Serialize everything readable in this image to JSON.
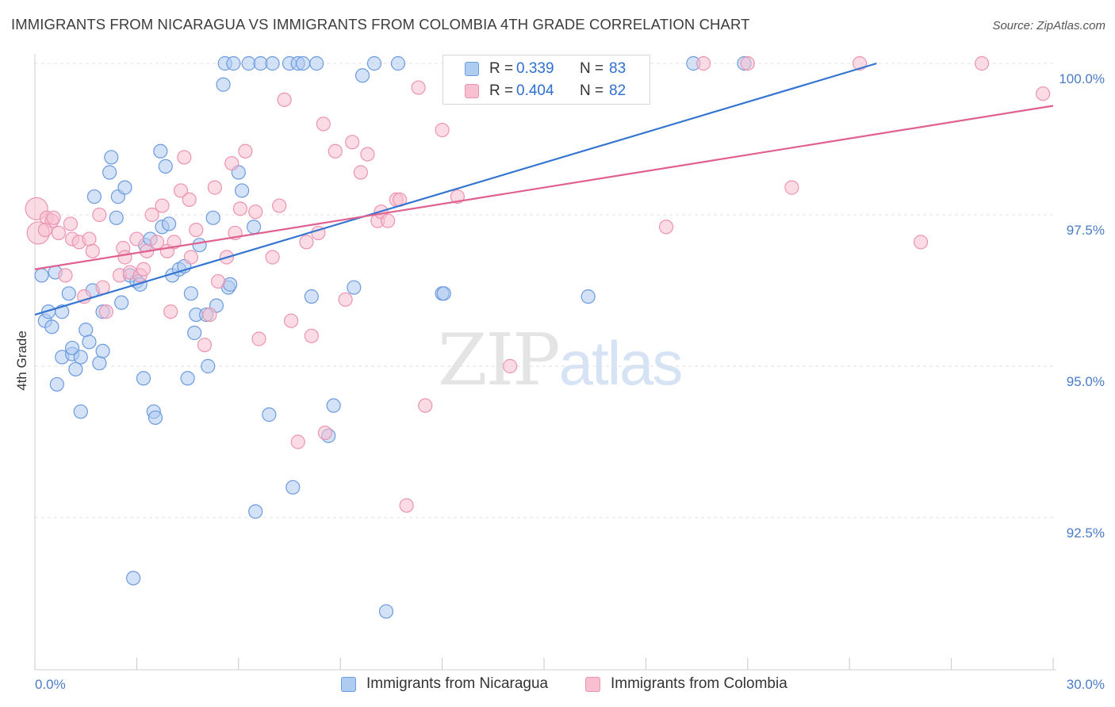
{
  "title": "IMMIGRANTS FROM NICARAGUA VS IMMIGRANTS FROM COLOMBIA 4TH GRADE CORRELATION CHART",
  "source": "Source: ZipAtlas.com",
  "watermark": {
    "zip": "ZIP",
    "atlas": "atlas"
  },
  "colors": {
    "nicaragua_fill": "#aecbf0",
    "nicaragua_stroke": "#6b9be0",
    "nicaragua_line": "#3375d1",
    "colombia_fill": "#f7bfd0",
    "colombia_stroke": "#ec93b2",
    "colombia_line": "#e06090",
    "tick_text": "#4a7cc7",
    "grid": "#e2e2e2"
  },
  "legend": {
    "rows": [
      {
        "r_label": "R =",
        "r_value": "0.339",
        "n_label": "N =",
        "n_value": "83"
      },
      {
        "r_label": "R =",
        "r_value": "0.404",
        "n_label": "N =",
        "n_value": "82"
      }
    ]
  },
  "bottom_legend": [
    {
      "label": "Immigrants from Nicaragua"
    },
    {
      "label": "Immigrants from Colombia"
    }
  ],
  "chart_data": {
    "type": "scatter",
    "ylabel": "4th Grade",
    "xlabel": "",
    "xlim": [
      0.0,
      30.0
    ],
    "ylim": [
      90.0,
      100.2
    ],
    "x_tick_labels": [
      "0.0%",
      "30.0%"
    ],
    "y_ticks": [
      92.5,
      95.0,
      97.5,
      100.0
    ],
    "y_tick_labels": [
      "92.5%",
      "95.0%",
      "97.5%",
      "100.0%"
    ],
    "grid": true,
    "legend_position": "top-center",
    "series": [
      {
        "name": "Immigrants from Nicaragua",
        "r": 0.339,
        "n": 83,
        "trend": {
          "x0": 0.0,
          "y0": 95.85,
          "x1": 24.8,
          "y1": 100.0
        },
        "points": [
          [
            0.2,
            96.5
          ],
          [
            0.3,
            95.75
          ],
          [
            0.4,
            95.9
          ],
          [
            0.5,
            95.65
          ],
          [
            0.6,
            96.55
          ],
          [
            0.65,
            94.7
          ],
          [
            0.8,
            95.9
          ],
          [
            0.8,
            95.15
          ],
          [
            1.0,
            96.2
          ],
          [
            1.1,
            95.2
          ],
          [
            1.1,
            95.3
          ],
          [
            1.2,
            94.95
          ],
          [
            1.35,
            94.25
          ],
          [
            1.35,
            95.15
          ],
          [
            1.5,
            95.6
          ],
          [
            1.6,
            95.4
          ],
          [
            1.7,
            96.25
          ],
          [
            1.75,
            97.8
          ],
          [
            1.9,
            95.05
          ],
          [
            2.0,
            95.25
          ],
          [
            2.0,
            95.9
          ],
          [
            2.2,
            98.2
          ],
          [
            2.25,
            98.45
          ],
          [
            2.4,
            97.45
          ],
          [
            2.45,
            97.8
          ],
          [
            2.55,
            96.05
          ],
          [
            2.65,
            97.95
          ],
          [
            2.8,
            96.5
          ],
          [
            2.9,
            91.5
          ],
          [
            3.0,
            96.4
          ],
          [
            3.1,
            96.35
          ],
          [
            3.2,
            94.8
          ],
          [
            3.25,
            97.0
          ],
          [
            3.4,
            97.1
          ],
          [
            3.5,
            94.25
          ],
          [
            3.55,
            94.15
          ],
          [
            3.7,
            98.55
          ],
          [
            3.75,
            97.3
          ],
          [
            3.85,
            98.3
          ],
          [
            3.95,
            97.35
          ],
          [
            4.05,
            96.5
          ],
          [
            4.25,
            96.6
          ],
          [
            4.4,
            96.65
          ],
          [
            4.5,
            94.8
          ],
          [
            4.6,
            96.2
          ],
          [
            4.7,
            95.55
          ],
          [
            4.75,
            95.85
          ],
          [
            4.85,
            97.0
          ],
          [
            5.05,
            95.85
          ],
          [
            5.1,
            95.0
          ],
          [
            5.25,
            97.45
          ],
          [
            5.35,
            96.0
          ],
          [
            5.55,
            99.65
          ],
          [
            5.6,
            100.0
          ],
          [
            5.7,
            96.3
          ],
          [
            5.75,
            96.35
          ],
          [
            5.85,
            100.0
          ],
          [
            6.0,
            98.2
          ],
          [
            6.1,
            97.9
          ],
          [
            6.3,
            100.0
          ],
          [
            6.45,
            97.3
          ],
          [
            6.5,
            92.6
          ],
          [
            6.65,
            100.0
          ],
          [
            6.9,
            94.2
          ],
          [
            7.0,
            100.0
          ],
          [
            7.5,
            100.0
          ],
          [
            7.6,
            93.0
          ],
          [
            7.75,
            100.0
          ],
          [
            7.9,
            100.0
          ],
          [
            8.15,
            96.15
          ],
          [
            8.3,
            100.0
          ],
          [
            8.65,
            93.85
          ],
          [
            8.8,
            94.35
          ],
          [
            9.4,
            96.3
          ],
          [
            9.65,
            99.8
          ],
          [
            10.0,
            100.0
          ],
          [
            10.35,
            90.95
          ],
          [
            10.7,
            100.0
          ],
          [
            12.0,
            96.2
          ],
          [
            12.05,
            96.2
          ],
          [
            16.3,
            96.15
          ],
          [
            19.4,
            100.0
          ],
          [
            20.9,
            100.0
          ]
        ]
      },
      {
        "name": "Immigrants from Colombia",
        "r": 0.404,
        "n": 82,
        "trend": {
          "x0": 0.0,
          "y0": 96.6,
          "x1": 30.0,
          "y1": 99.3
        },
        "points": [
          [
            0.05,
            97.6
          ],
          [
            0.1,
            97.2
          ],
          [
            0.35,
            97.45
          ],
          [
            0.5,
            97.4
          ],
          [
            0.7,
            97.2
          ],
          [
            0.9,
            96.5
          ],
          [
            1.05,
            97.35
          ],
          [
            1.1,
            97.1
          ],
          [
            1.3,
            97.05
          ],
          [
            1.45,
            96.15
          ],
          [
            1.6,
            97.1
          ],
          [
            1.7,
            96.9
          ],
          [
            1.9,
            97.5
          ],
          [
            2.0,
            96.3
          ],
          [
            2.1,
            95.9
          ],
          [
            2.5,
            96.5
          ],
          [
            2.6,
            96.95
          ],
          [
            2.65,
            96.8
          ],
          [
            2.8,
            96.55
          ],
          [
            3.0,
            97.1
          ],
          [
            3.1,
            96.5
          ],
          [
            3.2,
            96.6
          ],
          [
            3.3,
            96.9
          ],
          [
            3.45,
            97.5
          ],
          [
            3.6,
            97.05
          ],
          [
            3.75,
            97.65
          ],
          [
            3.9,
            96.9
          ],
          [
            4.0,
            95.9
          ],
          [
            4.1,
            97.05
          ],
          [
            4.3,
            97.9
          ],
          [
            4.4,
            98.45
          ],
          [
            4.55,
            97.75
          ],
          [
            4.6,
            96.8
          ],
          [
            4.75,
            97.25
          ],
          [
            5.0,
            95.35
          ],
          [
            5.15,
            95.85
          ],
          [
            5.3,
            97.95
          ],
          [
            5.4,
            96.4
          ],
          [
            5.65,
            96.8
          ],
          [
            5.8,
            98.35
          ],
          [
            5.9,
            97.2
          ],
          [
            6.05,
            97.6
          ],
          [
            6.2,
            98.55
          ],
          [
            6.5,
            97.55
          ],
          [
            6.6,
            95.45
          ],
          [
            7.0,
            96.8
          ],
          [
            7.2,
            97.65
          ],
          [
            7.35,
            99.4
          ],
          [
            7.55,
            95.75
          ],
          [
            7.75,
            93.75
          ],
          [
            8.0,
            97.05
          ],
          [
            8.15,
            95.5
          ],
          [
            8.35,
            97.2
          ],
          [
            8.5,
            99.0
          ],
          [
            8.55,
            93.9
          ],
          [
            8.85,
            98.55
          ],
          [
            9.15,
            96.1
          ],
          [
            9.35,
            98.7
          ],
          [
            9.6,
            98.2
          ],
          [
            9.8,
            98.5
          ],
          [
            10.1,
            97.4
          ],
          [
            10.2,
            97.55
          ],
          [
            10.4,
            97.4
          ],
          [
            10.65,
            97.75
          ],
          [
            10.75,
            97.75
          ],
          [
            10.95,
            92.7
          ],
          [
            11.3,
            99.6
          ],
          [
            11.5,
            94.35
          ],
          [
            12.0,
            98.9
          ],
          [
            12.45,
            97.8
          ],
          [
            13.5,
            100.0
          ],
          [
            14.0,
            95.0
          ],
          [
            18.6,
            97.3
          ],
          [
            19.7,
            100.0
          ],
          [
            21.0,
            100.0
          ],
          [
            22.3,
            97.95
          ],
          [
            24.3,
            100.0
          ],
          [
            26.1,
            97.05
          ],
          [
            27.9,
            100.0
          ],
          [
            29.7,
            99.5
          ],
          [
            0.3,
            97.25
          ],
          [
            0.55,
            97.45
          ]
        ]
      }
    ]
  }
}
